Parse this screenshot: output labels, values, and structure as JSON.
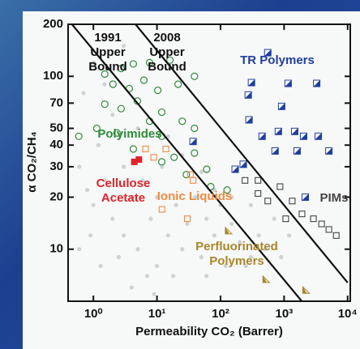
{
  "chart_data": {
    "type": "scatter",
    "xscale": "log",
    "yscale": "log",
    "x_label": "Permeability CO₂ (Barrer)",
    "y_label": "α CO₂/CH₄",
    "xlim": [
      0.4,
      11000
    ],
    "ylim": [
      5,
      200
    ],
    "xticks": [
      {
        "value": 1,
        "label": "10⁰"
      },
      {
        "value": 10,
        "label": "10¹"
      },
      {
        "value": 100,
        "label": "10²"
      },
      {
        "value": 1000,
        "label": "10³"
      },
      {
        "value": 10000,
        "label": "10⁴"
      }
    ],
    "yticks": [
      10,
      20,
      30,
      40,
      50,
      70,
      100,
      200
    ],
    "series": [
      {
        "type": "scatter",
        "marker": "dot",
        "color": "#cfd2d6",
        "x": [
          0.6,
          0.8,
          1,
          1.2,
          1.5,
          2,
          2,
          3,
          3,
          4,
          5,
          5,
          6,
          8,
          10,
          10,
          12,
          15,
          20,
          25,
          30,
          40,
          50,
          60,
          80,
          100,
          120,
          150,
          200,
          300,
          400,
          0.7,
          1,
          1.5,
          3,
          0.9,
          2.5,
          7,
          18,
          60,
          250,
          500,
          700,
          1200,
          900,
          15,
          25,
          50,
          80,
          150,
          300,
          0.6,
          1.3,
          4,
          9
        ],
        "values": [
          30,
          22,
          18,
          40,
          25,
          15,
          60,
          30,
          12,
          20,
          10,
          50,
          25,
          15,
          20,
          8,
          30,
          12,
          18,
          10,
          14,
          20,
          9,
          15,
          12,
          18,
          8,
          14,
          11,
          9,
          12,
          80,
          120,
          90,
          150,
          12,
          9,
          7,
          7,
          7,
          8,
          10,
          15,
          12,
          9,
          45,
          35,
          28,
          22,
          20,
          18,
          10,
          8,
          6,
          5.5
        ]
      },
      {
        "name": "Polyimides",
        "type": "scatter",
        "marker": "open-circle",
        "color": "#2e8b3a",
        "x": [
          1.51,
          2.73,
          4.25,
          7.67,
          16,
          2.03,
          3.67,
          6.23,
          10.3,
          21.5,
          38.9,
          1.51,
          2.73,
          4.92,
          11.9,
          25,
          1.13,
          2.35,
          4.25,
          11.9,
          18.6,
          38.9,
          60.6,
          70.2,
          127,
          29,
          11.9,
          7.67,
          38.9,
          0.59
        ],
        "values": [
          103,
          111,
          118,
          120,
          124,
          90,
          85,
          95,
          83,
          90,
          100,
          69,
          65,
          72,
          62,
          55,
          50,
          47,
          38,
          45,
          34,
          36,
          29,
          23,
          22,
          27,
          32,
          55,
          50,
          45
        ]
      },
      {
        "name": "Cellulose Acetate",
        "type": "scatter",
        "marker": "square",
        "color": "#e0242a",
        "x": [
          5.2,
          4.4
        ],
        "values": [
          33,
          32
        ]
      },
      {
        "name": "Ionic Liquids",
        "type": "scatter",
        "marker": "open-square",
        "color": "#f08a40",
        "x": [
          6.6,
          8.9,
          13.8,
          33.5,
          37,
          30,
          12
        ],
        "values": [
          38,
          34,
          38,
          27,
          25,
          15,
          17
        ]
      },
      {
        "name": "Perfluorinated Polymers",
        "type": "scatter",
        "marker": "half-triangle",
        "color": "#a8862a",
        "x": [
          134,
          522,
          2218
        ],
        "values": [
          12.8,
          6.7,
          5.8
        ]
      },
      {
        "name": "TR Polymers",
        "type": "scatter",
        "marker": "half-square",
        "color": "#1f3f9e",
        "x": [
          554,
          307,
          1159,
          3258,
          273,
          916,
          281,
          451,
          813,
          1468,
          2031,
          3454,
          722,
          1604,
          5070,
          228,
          37,
          170,
          2154
        ],
        "values": [
          137,
          92,
          91,
          91,
          78,
          67,
          56,
          45,
          48,
          48,
          45,
          45,
          37,
          37,
          37,
          31,
          42,
          29,
          20
        ]
      },
      {
        "name": "PIMs",
        "type": "scatter",
        "marker": "open-square",
        "color": "#444444",
        "x": [
          389,
          554,
          863,
          1343,
          1915,
          2895,
          3890,
          5070,
          6620,
          1061,
          243,
          389
        ],
        "values": [
          21,
          19,
          23,
          19,
          16,
          15,
          14,
          13,
          12,
          15,
          25,
          25
        ]
      },
      {
        "name": "1991 Upper Bound",
        "type": "line",
        "color": "#111111",
        "x": [
          0.46,
          1900
        ],
        "values": [
          200,
          5
        ]
      },
      {
        "name": "2008 Upper Bound",
        "type": "line",
        "color": "#111111",
        "x": [
          4.6,
          10000
        ],
        "values": [
          200,
          6.4
        ]
      }
    ]
  }
}
